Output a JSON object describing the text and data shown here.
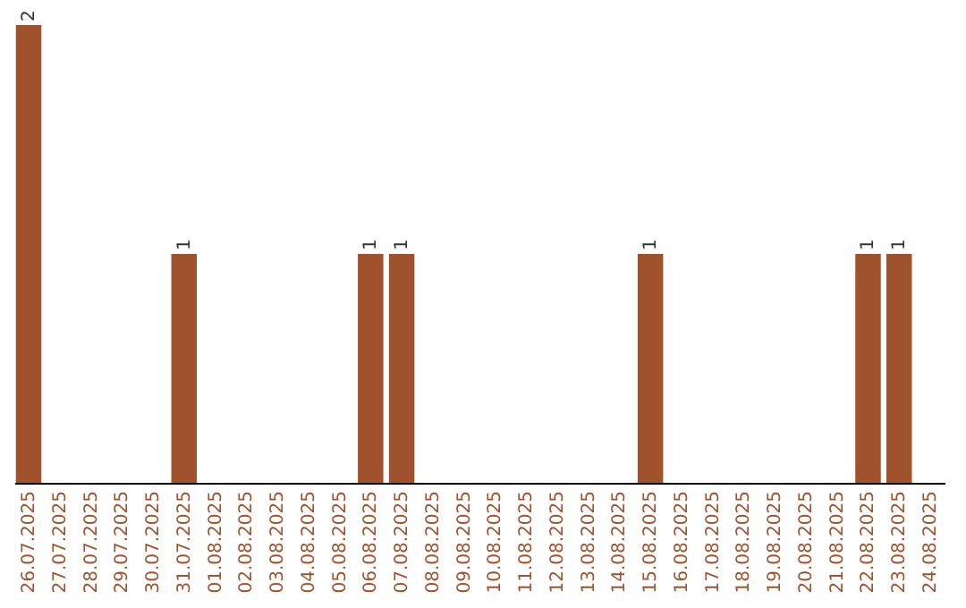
{
  "chart_data": {
    "type": "bar",
    "categories": [
      "26.07.2025",
      "27.07.2025",
      "28.07.2025",
      "29.07.2025",
      "30.07.2025",
      "31.07.2025",
      "01.08.2025",
      "02.08.2025",
      "03.08.2025",
      "04.08.2025",
      "05.08.2025",
      "06.08.2025",
      "07.08.2025",
      "08.08.2025",
      "09.08.2025",
      "10.08.2025",
      "11.08.2025",
      "12.08.2025",
      "13.08.2025",
      "14.08.2025",
      "15.08.2025",
      "16.08.2025",
      "17.08.2025",
      "18.08.2025",
      "19.08.2025",
      "20.08.2025",
      "21.08.2025",
      "22.08.2025",
      "23.08.2025",
      "24.08.2025"
    ],
    "values": [
      2,
      0,
      0,
      0,
      0,
      1,
      0,
      0,
      0,
      0,
      0,
      1,
      1,
      0,
      0,
      0,
      0,
      0,
      0,
      0,
      1,
      0,
      0,
      0,
      0,
      0,
      0,
      1,
      1,
      0
    ],
    "value_labels": [
      "2",
      null,
      null,
      null,
      null,
      "1",
      null,
      null,
      null,
      null,
      null,
      "1",
      "1",
      null,
      null,
      null,
      null,
      null,
      null,
      null,
      "1",
      null,
      null,
      null,
      null,
      null,
      null,
      "1",
      "1",
      null
    ],
    "color": "#a0522d",
    "grid": false,
    "tick_labels": "x"
  }
}
